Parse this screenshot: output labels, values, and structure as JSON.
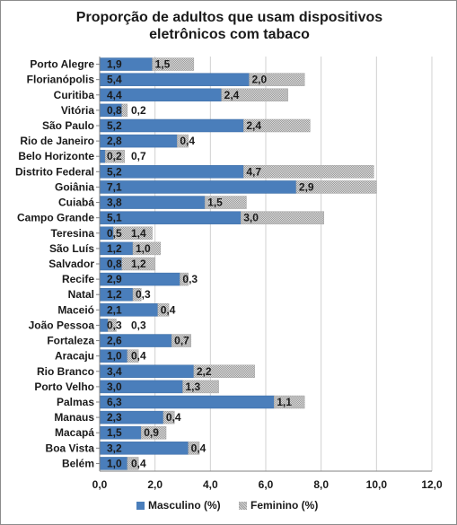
{
  "chart_data": {
    "type": "bar",
    "orientation": "horizontal",
    "stacked": true,
    "title": [
      "Proporção de adultos que usam dispositivos",
      "eletrônicos com tabaco"
    ],
    "categories": [
      "Porto Alegre",
      "Florianópolis",
      "Curitiba",
      "Vitória",
      "São Paulo",
      "Rio de Janeiro",
      "Belo Horizonte",
      "Distrito Federal",
      "Goiânia",
      "Cuiabá",
      "Campo Grande",
      "Teresina",
      "São Luís",
      "Salvador",
      "Recife",
      "Natal",
      "Maceió",
      "João Pessoa",
      "Fortaleza",
      "Aracaju",
      "Rio Branco",
      "Porto Velho",
      "Palmas",
      "Manaus",
      "Macapá",
      "Boa Vista",
      "Belém"
    ],
    "series": [
      {
        "name": "Masculino (%)",
        "color": "#4a7ebb",
        "values": [
          1.9,
          5.4,
          4.4,
          0.8,
          5.2,
          2.8,
          0.2,
          5.2,
          7.1,
          3.8,
          5.1,
          0.5,
          1.2,
          0.8,
          2.9,
          1.2,
          2.1,
          0.3,
          2.6,
          1.0,
          3.4,
          3.0,
          6.3,
          2.3,
          1.5,
          3.2,
          1.0
        ]
      },
      {
        "name": "Feminino (%)",
        "color": "#bfbfbf",
        "values": [
          1.5,
          2.0,
          2.4,
          0.2,
          2.4,
          0.4,
          0.7,
          4.7,
          2.9,
          1.5,
          3.0,
          1.4,
          1.0,
          1.2,
          0.3,
          0.3,
          0.4,
          0.3,
          0.7,
          0.4,
          2.2,
          1.3,
          1.1,
          0.4,
          0.9,
          0.4,
          0.4
        ]
      }
    ],
    "xlim": [
      0,
      12
    ],
    "xticks": [
      "0,0",
      "2,0",
      "4,0",
      "6,0",
      "8,0",
      "10,0",
      "12,0"
    ],
    "data_labels": true,
    "decimal_separator": ",",
    "grid": "vertical",
    "legend_position": "bottom"
  }
}
